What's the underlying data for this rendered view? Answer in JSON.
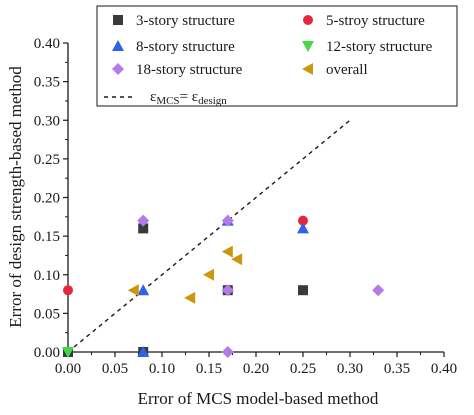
{
  "chart_data": {
    "type": "scatter",
    "title": "",
    "xlabel": "Error of MCS model-based method",
    "ylabel": "Error of design strength-based method",
    "xlim": [
      0.0,
      0.4
    ],
    "ylim": [
      0.0,
      0.4
    ],
    "x_ticks": [
      "0.00",
      "0.05",
      "0.10",
      "0.15",
      "0.20",
      "0.25",
      "0.30",
      "0.35",
      "0.40"
    ],
    "y_ticks": [
      "0.00",
      "0.05",
      "0.10",
      "0.15",
      "0.20",
      "0.25",
      "0.30",
      "0.35",
      "0.40"
    ],
    "grid": false,
    "legend_position": "top",
    "series": [
      {
        "name": "3-story structure",
        "marker": "square",
        "color": "#3a3a3a",
        "points": [
          [
            0.0,
            0.0
          ],
          [
            0.08,
            0.16
          ],
          [
            0.08,
            0.0
          ],
          [
            0.17,
            0.08
          ],
          [
            0.25,
            0.08
          ]
        ]
      },
      {
        "name": "5-stroy structure",
        "marker": "circle",
        "color": "#e8283a",
        "points": [
          [
            0.0,
            0.08
          ],
          [
            0.25,
            0.17
          ]
        ]
      },
      {
        "name": "8-story structure",
        "marker": "triangle-up",
        "color": "#2f62e6",
        "points": [
          [
            0.08,
            0.08
          ],
          [
            0.08,
            0.0
          ],
          [
            0.17,
            0.17
          ],
          [
            0.25,
            0.16
          ]
        ]
      },
      {
        "name": "12-story structure",
        "marker": "triangle-down",
        "color": "#45d948",
        "points": [
          [
            0.0,
            0.0
          ]
        ]
      },
      {
        "name": "18-story structure",
        "marker": "diamond",
        "color": "#b27be8",
        "points": [
          [
            0.08,
            0.17
          ],
          [
            0.17,
            0.17
          ],
          [
            0.17,
            0.08
          ],
          [
            0.17,
            0.0
          ],
          [
            0.33,
            0.08
          ]
        ]
      },
      {
        "name": "overall",
        "marker": "triangle-left",
        "color": "#c9980e",
        "points": [
          [
            0.07,
            0.08
          ],
          [
            0.13,
            0.07
          ],
          [
            0.15,
            0.1
          ],
          [
            0.17,
            0.13
          ],
          [
            0.18,
            0.12
          ]
        ]
      }
    ],
    "reference_line": {
      "label_lhs": "ε",
      "label_lhs_sub": "MCS",
      "label_eq": "= ε",
      "label_rhs_sub": "design",
      "from": [
        0.0,
        0.0
      ],
      "to": [
        0.3,
        0.3
      ]
    }
  }
}
